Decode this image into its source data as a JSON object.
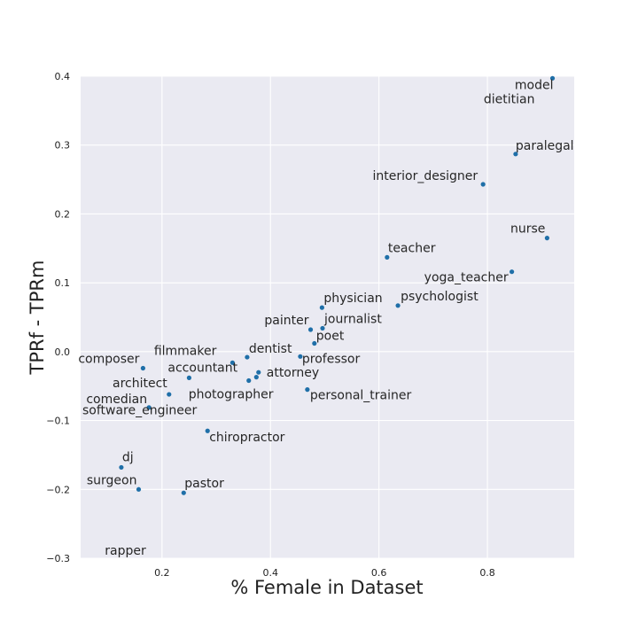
{
  "chart_data": {
    "type": "scatter",
    "title": "",
    "xlabel": "% Female in Dataset",
    "ylabel": "TPRf - TPRm",
    "xlim": [
      0.05,
      0.96
    ],
    "ylim": [
      -0.3,
      0.4
    ],
    "xticks": [
      0.2,
      0.4,
      0.6,
      0.8
    ],
    "yticks": [
      -0.3,
      -0.2,
      -0.1,
      0.0,
      0.1,
      0.2,
      0.3,
      0.4
    ],
    "xtick_labels": [
      "0.2",
      "0.4",
      "0.6",
      "0.8"
    ],
    "ytick_labels": [
      "−0.3",
      "−0.2",
      "−0.1",
      "0.0",
      "0.1",
      "0.2",
      "0.3",
      "0.4"
    ],
    "grid": true,
    "point_color": "#1f6fa8",
    "background_color": "#eaeaf2",
    "points": [
      {
        "label": "model",
        "x": 0.92,
        "y": 0.397
      },
      {
        "label": "dietitian",
        "x": 0.92,
        "y": 0.397
      },
      {
        "label": "paralegal",
        "x": 0.852,
        "y": 0.287
      },
      {
        "label": "interior_designer",
        "x": 0.792,
        "y": 0.243
      },
      {
        "label": "nurse",
        "x": 0.91,
        "y": 0.165
      },
      {
        "label": "teacher",
        "x": 0.615,
        "y": 0.137
      },
      {
        "label": "yoga_teacher",
        "x": 0.845,
        "y": 0.116
      },
      {
        "label": "psychologist",
        "x": 0.635,
        "y": 0.067
      },
      {
        "label": "physician",
        "x": 0.495,
        "y": 0.064
      },
      {
        "label": "journalist",
        "x": 0.496,
        "y": 0.034
      },
      {
        "label": "painter",
        "x": 0.474,
        "y": 0.032
      },
      {
        "label": "poet",
        "x": 0.481,
        "y": 0.012
      },
      {
        "label": "professor",
        "x": 0.455,
        "y": -0.007
      },
      {
        "label": "dentist",
        "x": 0.357,
        "y": -0.008
      },
      {
        "label": "filmmaker",
        "x": 0.33,
        "y": -0.016
      },
      {
        "label": "composer",
        "x": 0.165,
        "y": -0.024
      },
      {
        "label": "attorney",
        "x": 0.378,
        "y": -0.03
      },
      {
        "label": "accountant",
        "x": 0.25,
        "y": -0.038
      },
      {
        "label": "personal_trainer",
        "x": 0.468,
        "y": -0.055
      },
      {
        "label": "architect",
        "x": 0.213,
        "y": -0.062
      },
      {
        "label": "photographer",
        "x": 0.36,
        "y": -0.042
      },
      {
        "label": "comedian",
        "x": 0.176,
        "y": -0.081
      },
      {
        "label": "software_engineer",
        "x": 0.374,
        "y": -0.037
      },
      {
        "label": "chiropractor",
        "x": 0.284,
        "y": -0.115
      },
      {
        "label": "dj",
        "x": 0.125,
        "y": -0.168
      },
      {
        "label": "surgeon",
        "x": 0.157,
        "y": -0.2
      },
      {
        "label": "pastor",
        "x": 0.24,
        "y": -0.205
      },
      {
        "label": "rapper",
        "x": 0.03,
        "y": -0.32
      }
    ]
  }
}
